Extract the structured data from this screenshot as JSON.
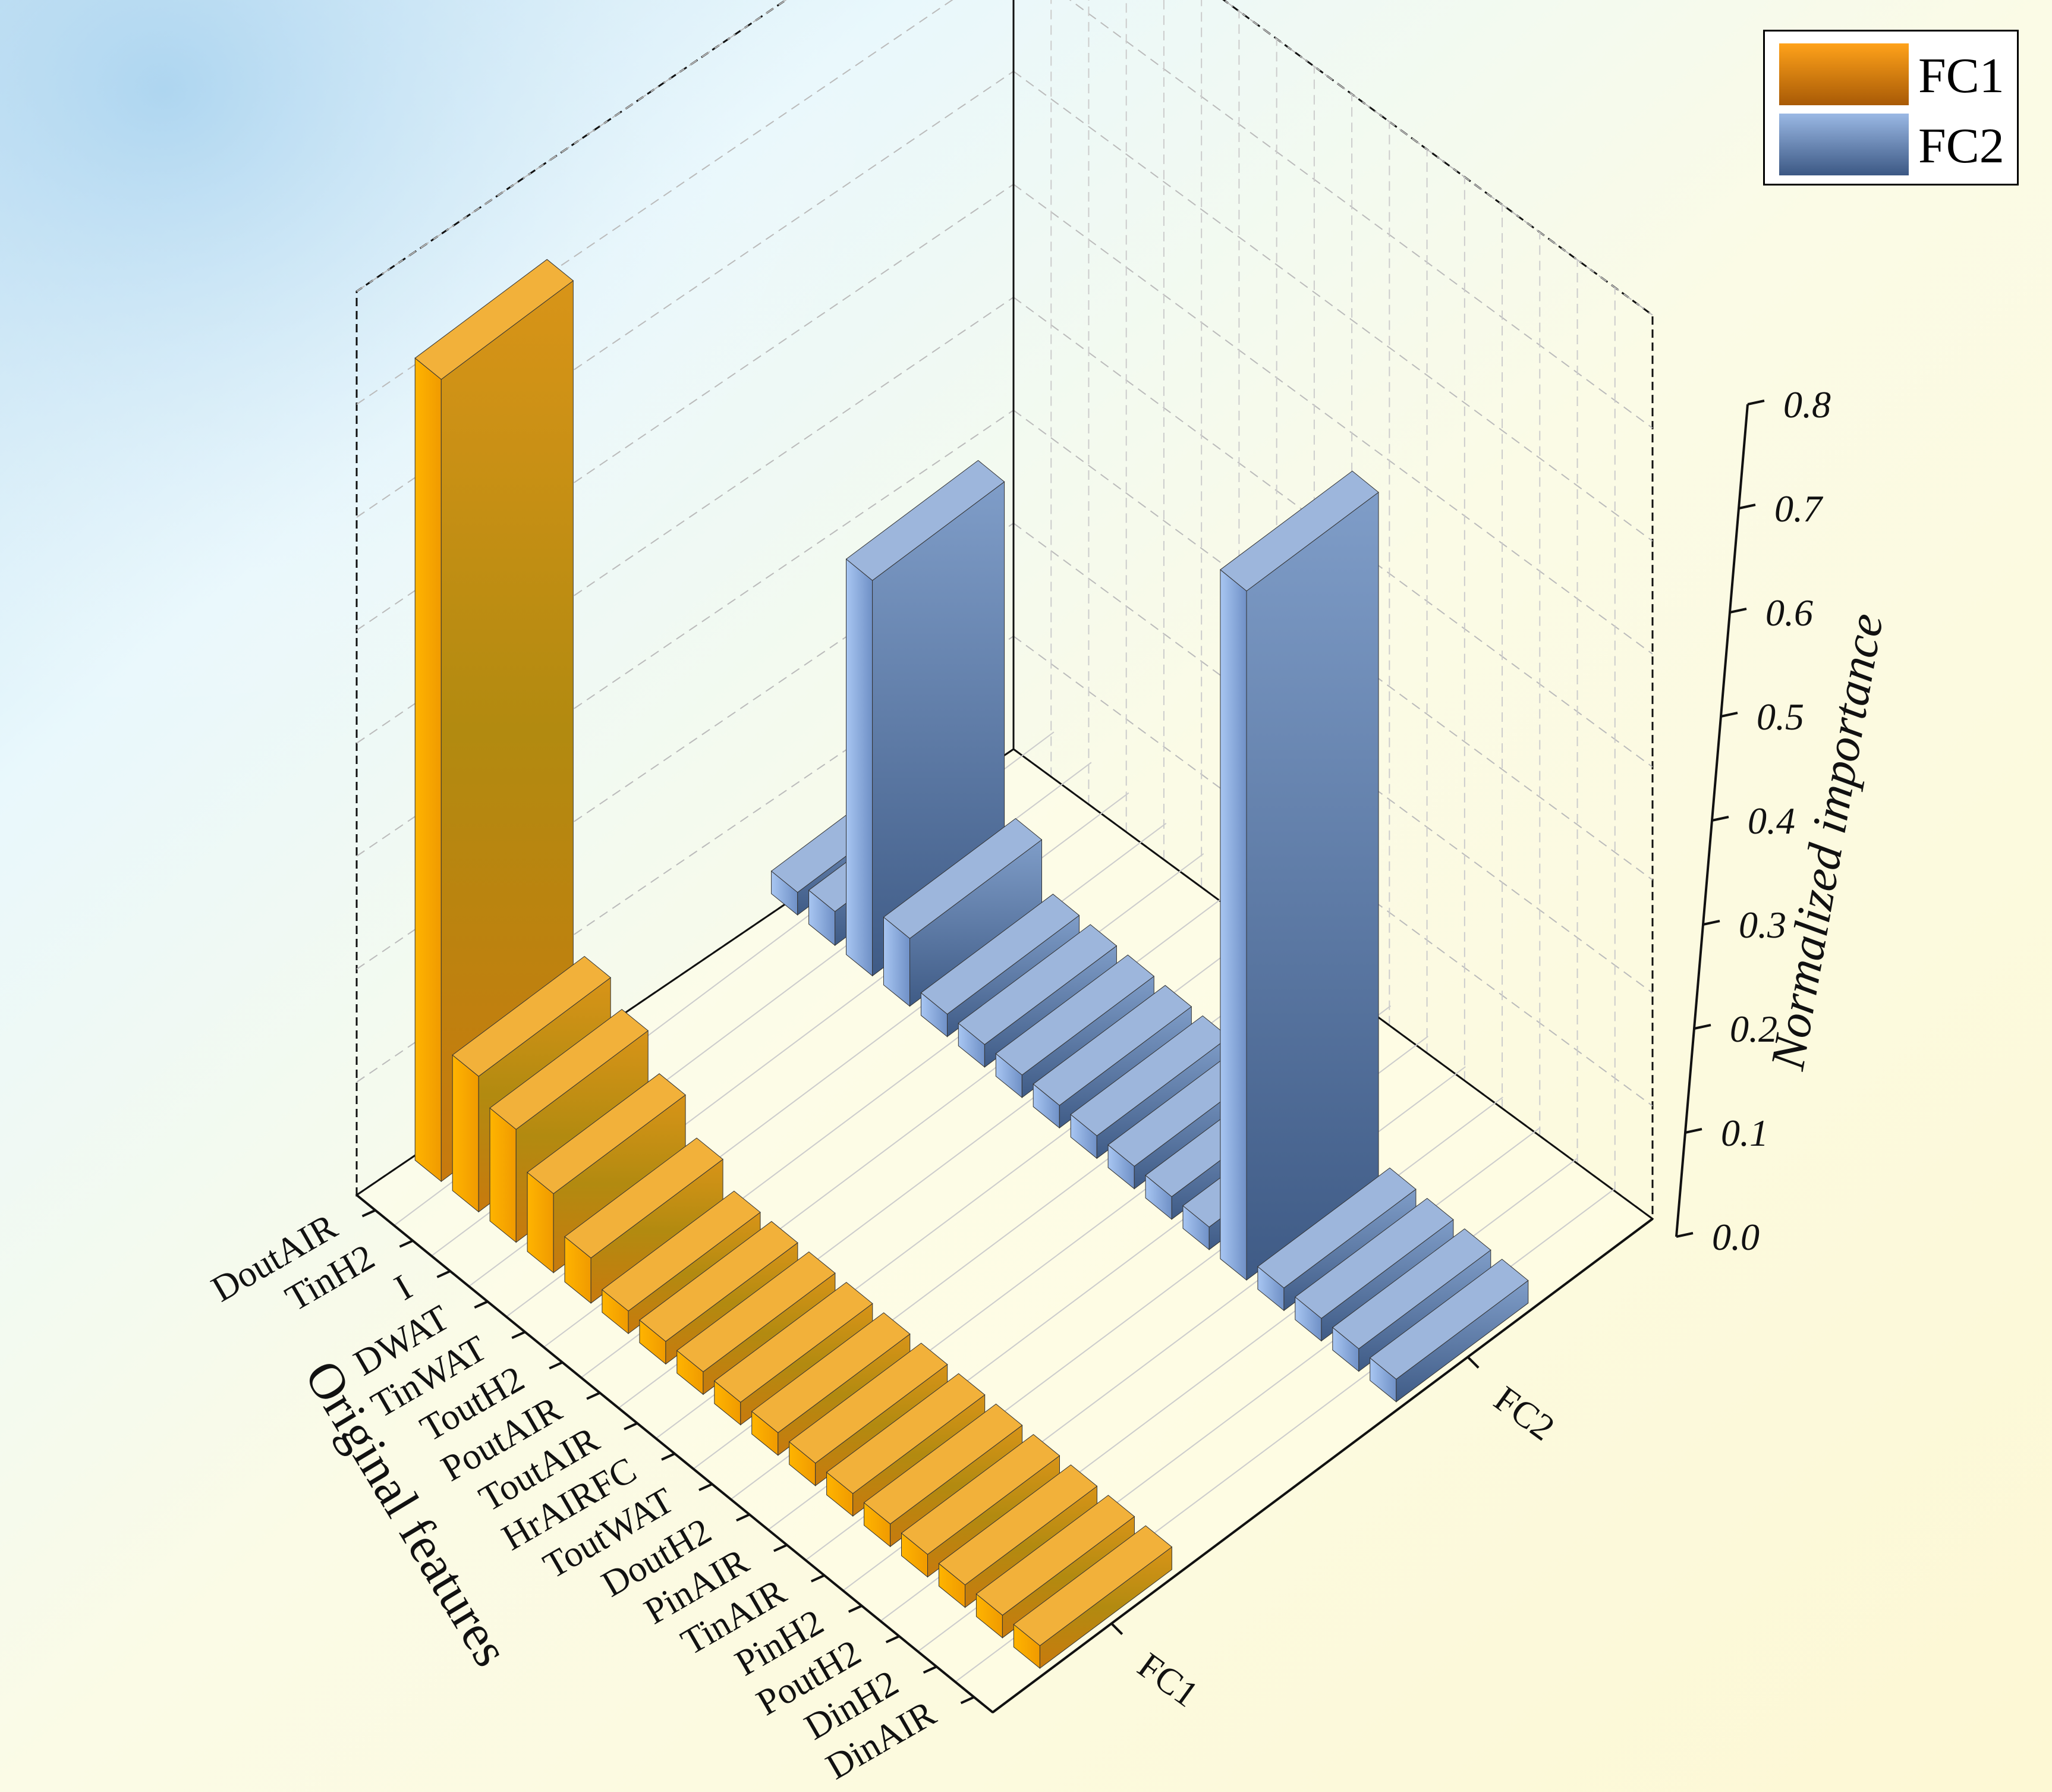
{
  "chart_data": {
    "type": "bar",
    "subtype": "3d-bar",
    "features": [
      "DoutAIR",
      "TinH2",
      "I",
      "DWAT",
      "TinWAT",
      "ToutH2",
      "PoutAIR",
      "ToutAIR",
      "HrAIRFC",
      "ToutWAT",
      "DoutH2",
      "PinAIR",
      "TinAIR",
      "PinH2",
      "PoutH2",
      "DinH2",
      "DinAIR"
    ],
    "series": [
      {
        "name": "FC1",
        "color": "#d08a1a",
        "values": [
          0.71,
          0.12,
          0.1,
          0.07,
          0.04,
          0.02,
          0.02,
          0.02,
          0.02,
          0.02,
          0.02,
          0.02,
          0.02,
          0.02,
          0.02,
          0.02,
          0.02
        ]
      },
      {
        "name": "FC2",
        "color": "#6a89b8",
        "values": [
          0.02,
          0.03,
          0.35,
          0.06,
          0.02,
          0.02,
          0.02,
          0.02,
          0.02,
          0.02,
          0.02,
          0.02,
          0.61,
          0.02,
          0.02,
          0.02,
          0.02
        ]
      }
    ],
    "zticks": [
      "0.0",
      "0.1",
      "0.2",
      "0.3",
      "0.4",
      "0.5",
      "0.6",
      "0.7",
      "0.8"
    ],
    "zlim": [
      0,
      0.8
    ],
    "zlabel": "Normalized importance",
    "xlabel": "Original features",
    "legend_position": "top-right",
    "grid": true
  },
  "legend": [
    {
      "label": "FC1"
    },
    {
      "label": "FC2"
    }
  ]
}
